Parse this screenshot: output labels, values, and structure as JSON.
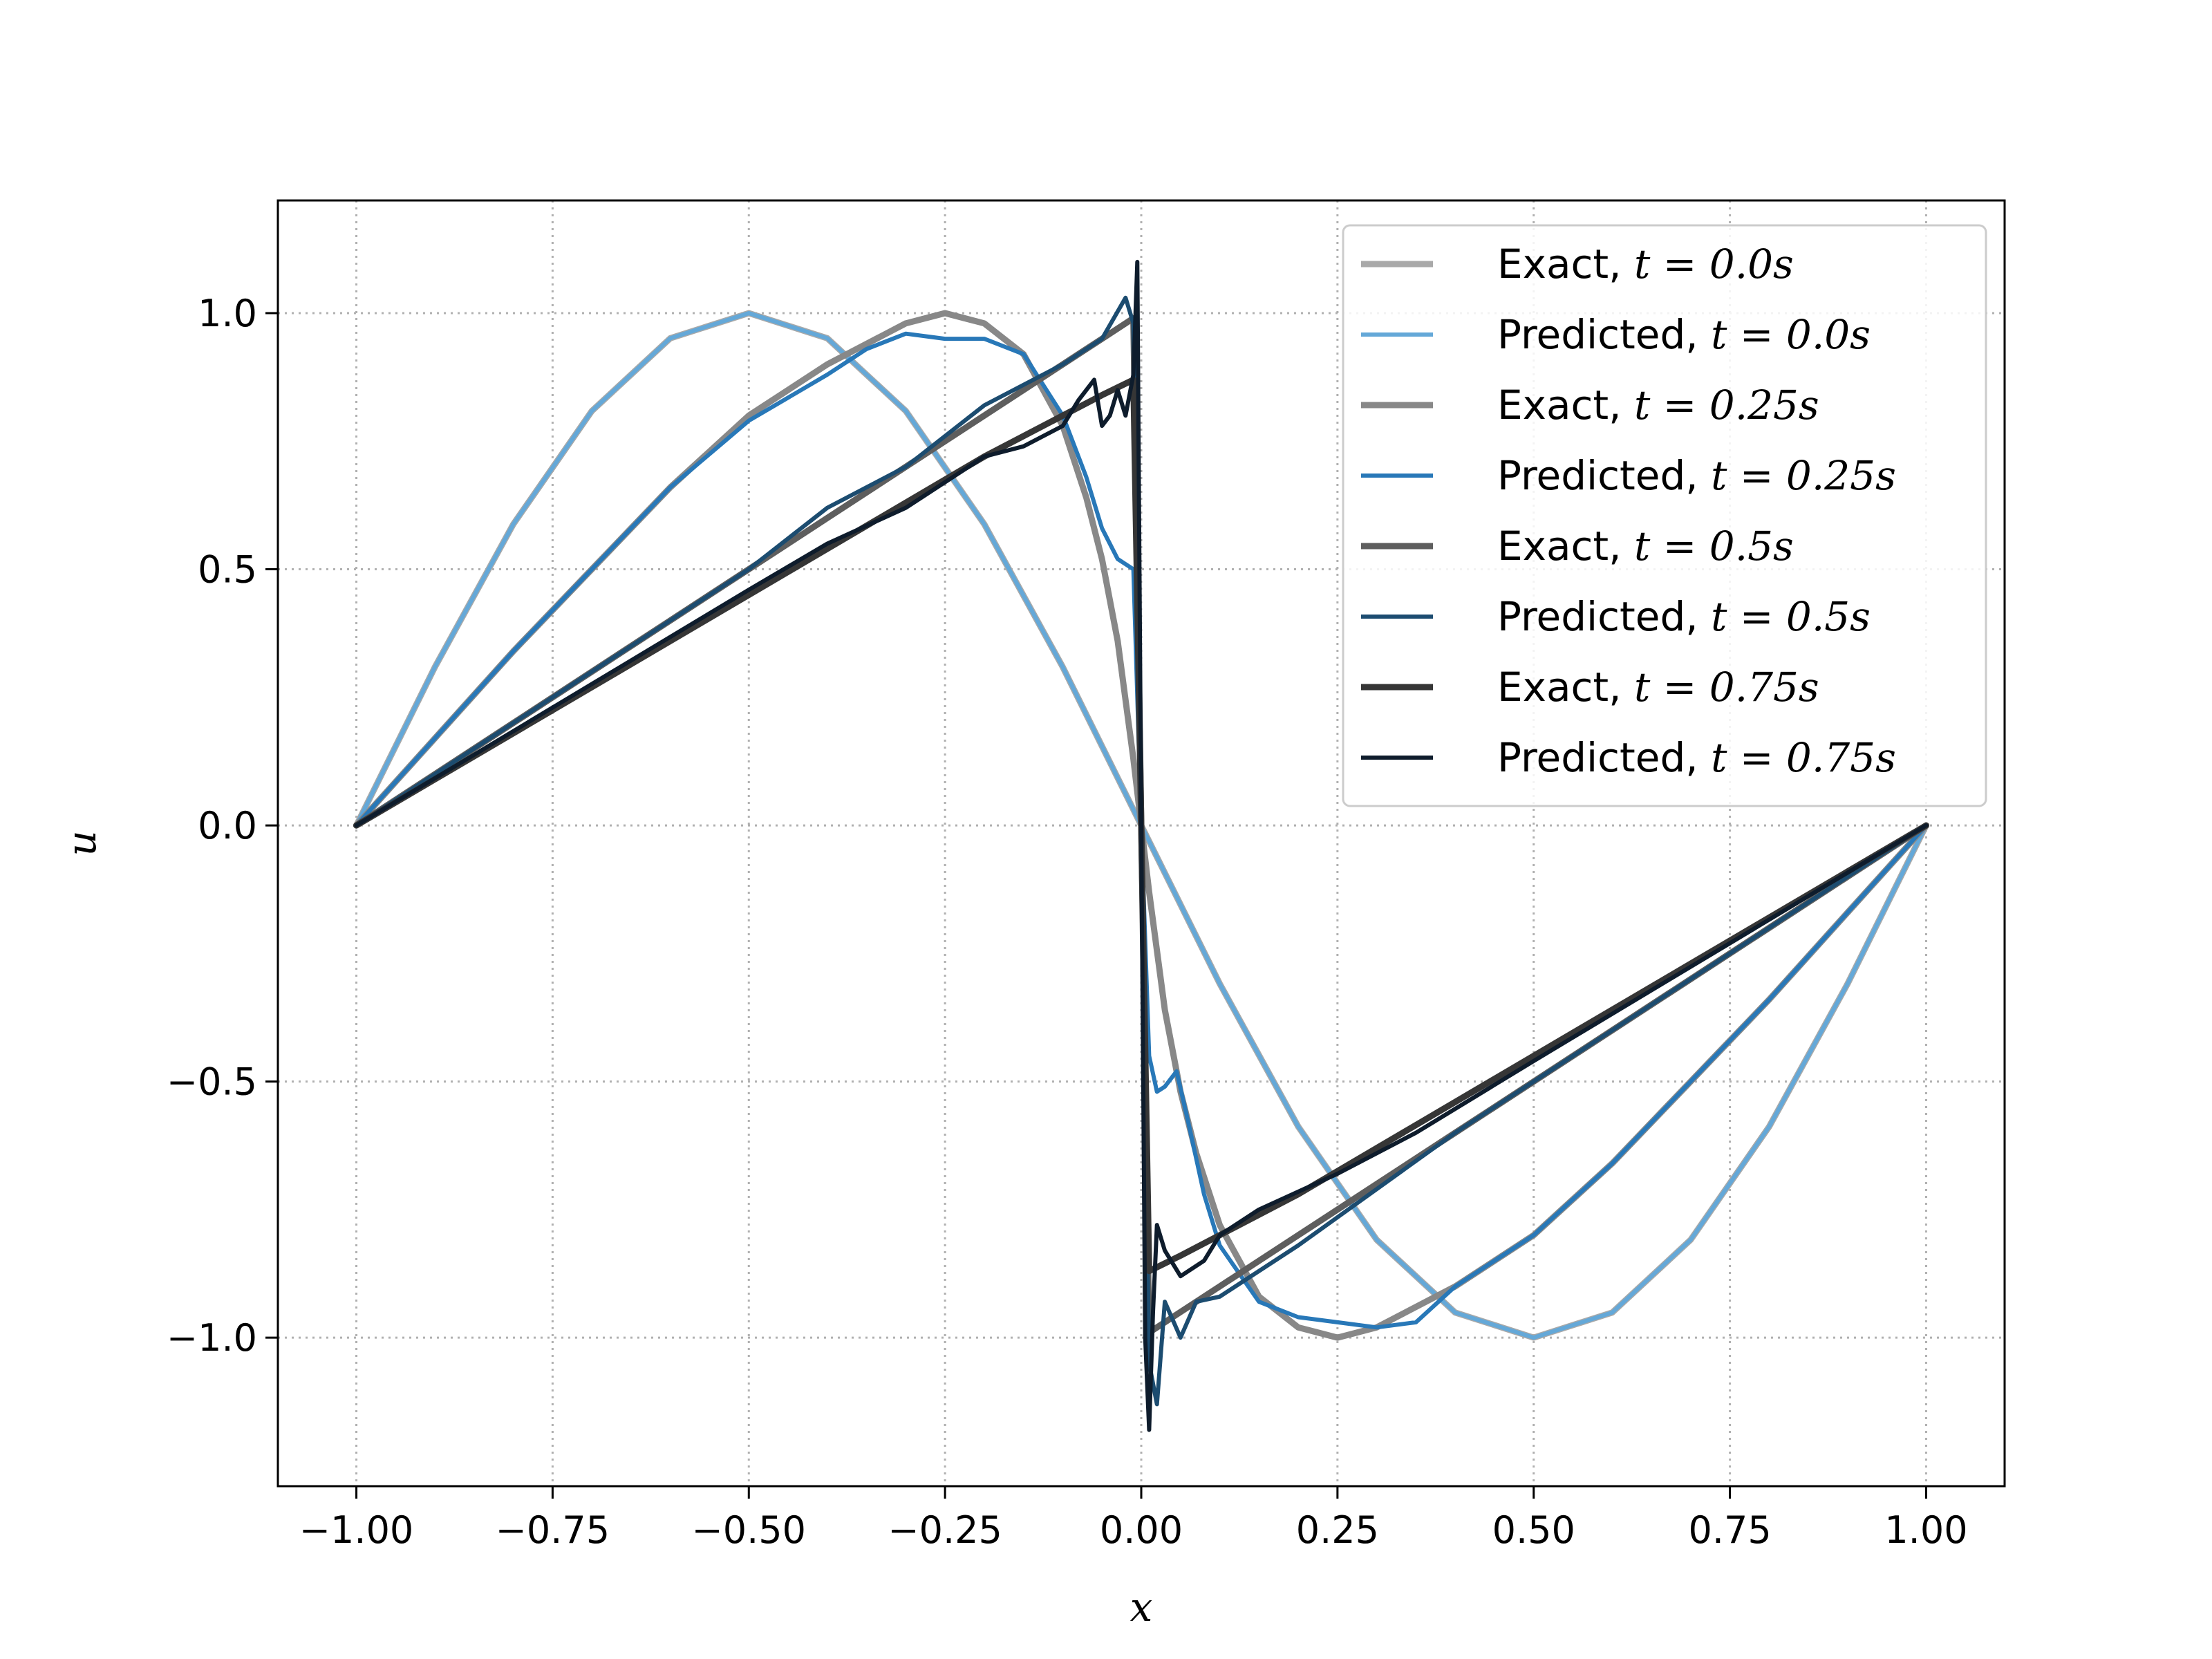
{
  "chart_data": {
    "type": "line",
    "xlabel": "x",
    "ylabel": "u",
    "xlim": [
      -1.1,
      1.1
    ],
    "ylim": [
      -1.29,
      1.22
    ],
    "grid": true,
    "legend_position": "top-right",
    "x_ticks": [
      {
        "value": -1.0,
        "label": "−1.00"
      },
      {
        "value": -0.75,
        "label": "−0.75"
      },
      {
        "value": -0.5,
        "label": "−0.50"
      },
      {
        "value": -0.25,
        "label": "−0.25"
      },
      {
        "value": 0.0,
        "label": "0.00"
      },
      {
        "value": 0.25,
        "label": "0.25"
      },
      {
        "value": 0.5,
        "label": "0.50"
      },
      {
        "value": 0.75,
        "label": "0.75"
      },
      {
        "value": 1.0,
        "label": "1.00"
      }
    ],
    "y_ticks": [
      {
        "value": -1.0,
        "label": "−1.0"
      },
      {
        "value": -0.5,
        "label": "−0.5"
      },
      {
        "value": 0.0,
        "label": "0.0"
      },
      {
        "value": 0.5,
        "label": "0.5"
      },
      {
        "value": 1.0,
        "label": "1.0"
      }
    ],
    "series": [
      {
        "name": "Exact, t = 0.0s",
        "label_prefix": "Exact, ",
        "label_time": "t = 0.0s",
        "color": "#a9a9a9",
        "width": 9,
        "x": [
          -1.0,
          -0.9,
          -0.8,
          -0.7,
          -0.6,
          -0.5,
          -0.4,
          -0.3,
          -0.2,
          -0.1,
          0.0,
          0.1,
          0.2,
          0.3,
          0.4,
          0.5,
          0.6,
          0.7,
          0.8,
          0.9,
          1.0
        ],
        "y": [
          0.0,
          0.309,
          0.588,
          0.809,
          0.951,
          1.0,
          0.951,
          0.809,
          0.588,
          0.309,
          0.0,
          -0.309,
          -0.588,
          -0.809,
          -0.951,
          -1.0,
          -0.951,
          -0.809,
          -0.588,
          -0.309,
          0.0
        ]
      },
      {
        "name": "Predicted, t = 0.0s",
        "label_prefix": "Predicted, ",
        "label_time": "t = 0.0s",
        "color": "#64a8d8",
        "width": 6,
        "x": [
          -1.0,
          -0.9,
          -0.8,
          -0.7,
          -0.6,
          -0.5,
          -0.4,
          -0.3,
          -0.2,
          -0.1,
          0.0,
          0.1,
          0.2,
          0.3,
          0.4,
          0.5,
          0.6,
          0.7,
          0.8,
          0.9,
          1.0
        ],
        "y": [
          0.0,
          0.309,
          0.588,
          0.809,
          0.951,
          1.0,
          0.951,
          0.809,
          0.588,
          0.309,
          0.0,
          -0.309,
          -0.588,
          -0.809,
          -0.951,
          -1.0,
          -0.951,
          -0.809,
          -0.588,
          -0.309,
          0.0
        ]
      },
      {
        "name": "Exact, t = 0.25s",
        "label_prefix": "Exact, ",
        "label_time": "t = 0.25s",
        "color": "#888888",
        "width": 9,
        "x": [
          -1.0,
          -0.9,
          -0.8,
          -0.7,
          -0.6,
          -0.5,
          -0.4,
          -0.3,
          -0.25,
          -0.2,
          -0.15,
          -0.1,
          -0.07,
          -0.05,
          -0.03,
          -0.01,
          0.0,
          0.01,
          0.03,
          0.05,
          0.07,
          0.1,
          0.15,
          0.2,
          0.25,
          0.3,
          0.4,
          0.5,
          0.6,
          0.7,
          0.8,
          0.9,
          1.0
        ],
        "y": [
          0.0,
          0.17,
          0.34,
          0.5,
          0.66,
          0.8,
          0.9,
          0.98,
          1.0,
          0.98,
          0.92,
          0.78,
          0.64,
          0.52,
          0.36,
          0.13,
          0.0,
          -0.13,
          -0.36,
          -0.52,
          -0.64,
          -0.78,
          -0.92,
          -0.98,
          -1.0,
          -0.98,
          -0.9,
          -0.8,
          -0.66,
          -0.5,
          -0.34,
          -0.17,
          0.0
        ]
      },
      {
        "name": "Predicted, t = 0.25s",
        "label_prefix": "Predicted, ",
        "label_time": "t = 0.25s",
        "color": "#2878b8",
        "width": 6,
        "x": [
          -1.0,
          -0.9,
          -0.8,
          -0.7,
          -0.6,
          -0.5,
          -0.4,
          -0.35,
          -0.3,
          -0.25,
          -0.2,
          -0.15,
          -0.1,
          -0.07,
          -0.05,
          -0.03,
          -0.02,
          -0.01,
          0.0,
          0.01,
          0.02,
          0.03,
          0.045,
          0.06,
          0.08,
          0.1,
          0.15,
          0.2,
          0.25,
          0.3,
          0.35,
          0.4,
          0.5,
          0.6,
          0.7,
          0.8,
          0.9,
          1.0
        ],
        "y": [
          0.0,
          0.17,
          0.34,
          0.5,
          0.66,
          0.79,
          0.88,
          0.93,
          0.96,
          0.95,
          0.95,
          0.92,
          0.8,
          0.68,
          0.58,
          0.52,
          0.51,
          0.5,
          0.0,
          -0.45,
          -0.52,
          -0.51,
          -0.48,
          -0.58,
          -0.72,
          -0.82,
          -0.93,
          -0.96,
          -0.97,
          -0.98,
          -0.97,
          -0.9,
          -0.8,
          -0.66,
          -0.5,
          -0.34,
          -0.17,
          0.0
        ]
      },
      {
        "name": "Exact, t = 0.5s",
        "label_prefix": "Exact, ",
        "label_time": "t = 0.5s",
        "color": "#5e5e5e",
        "width": 9,
        "x": [
          -1.0,
          -0.8,
          -0.6,
          -0.4,
          -0.2,
          -0.1,
          -0.05,
          -0.01,
          0.0,
          0.01,
          0.05,
          0.1,
          0.2,
          0.4,
          0.6,
          0.8,
          1.0
        ],
        "y": [
          0.0,
          0.2,
          0.4,
          0.6,
          0.8,
          0.9,
          0.95,
          0.99,
          0.0,
          -0.99,
          -0.95,
          -0.9,
          -0.8,
          -0.6,
          -0.4,
          -0.2,
          0.0
        ]
      },
      {
        "name": "Predicted, t = 0.5s",
        "label_prefix": "Predicted, ",
        "label_time": "t = 0.5s",
        "color": "#1c4c70",
        "width": 6,
        "x": [
          -1.0,
          -0.8,
          -0.6,
          -0.5,
          -0.4,
          -0.3,
          -0.2,
          -0.1,
          -0.05,
          -0.02,
          -0.01,
          0.0,
          0.01,
          0.02,
          0.03,
          0.05,
          0.07,
          0.1,
          0.2,
          0.4,
          0.6,
          0.8,
          1.0
        ],
        "y": [
          0.0,
          0.2,
          0.4,
          0.5,
          0.62,
          0.7,
          0.82,
          0.9,
          0.95,
          1.03,
          0.98,
          0.0,
          -1.05,
          -1.13,
          -0.93,
          -1.0,
          -0.93,
          -0.92,
          -0.82,
          -0.6,
          -0.4,
          -0.2,
          0.0
        ]
      },
      {
        "name": "Exact, t = 0.75s",
        "label_prefix": "Exact, ",
        "label_time": "t = 0.75s",
        "color": "#363636",
        "width": 9,
        "x": [
          -1.0,
          -0.5,
          -0.2,
          -0.05,
          -0.01,
          0.0,
          0.01,
          0.05,
          0.2,
          0.5,
          1.0
        ],
        "y": [
          0.0,
          0.45,
          0.72,
          0.84,
          0.87,
          0.0,
          -0.87,
          -0.84,
          -0.72,
          -0.45,
          0.0
        ]
      },
      {
        "name": "Predicted, t = 0.75s",
        "label_prefix": "Predicted, ",
        "label_time": "t = 0.75s",
        "color": "#0e1c2c",
        "width": 6,
        "x": [
          -1.0,
          -0.75,
          -0.5,
          -0.4,
          -0.3,
          -0.2,
          -0.15,
          -0.1,
          -0.08,
          -0.06,
          -0.05,
          -0.04,
          -0.03,
          -0.02,
          -0.01,
          -0.005,
          0.0,
          0.005,
          0.01,
          0.015,
          0.02,
          0.03,
          0.05,
          0.08,
          0.1,
          0.15,
          0.25,
          0.35,
          0.5,
          0.75,
          1.0
        ],
        "y": [
          0.0,
          0.23,
          0.46,
          0.55,
          0.62,
          0.72,
          0.74,
          0.78,
          0.83,
          0.87,
          0.78,
          0.8,
          0.85,
          0.8,
          0.88,
          1.1,
          0.0,
          -1.0,
          -1.18,
          -0.95,
          -0.78,
          -0.83,
          -0.88,
          -0.85,
          -0.8,
          -0.75,
          -0.68,
          -0.6,
          -0.46,
          -0.23,
          0.0
        ]
      }
    ]
  }
}
